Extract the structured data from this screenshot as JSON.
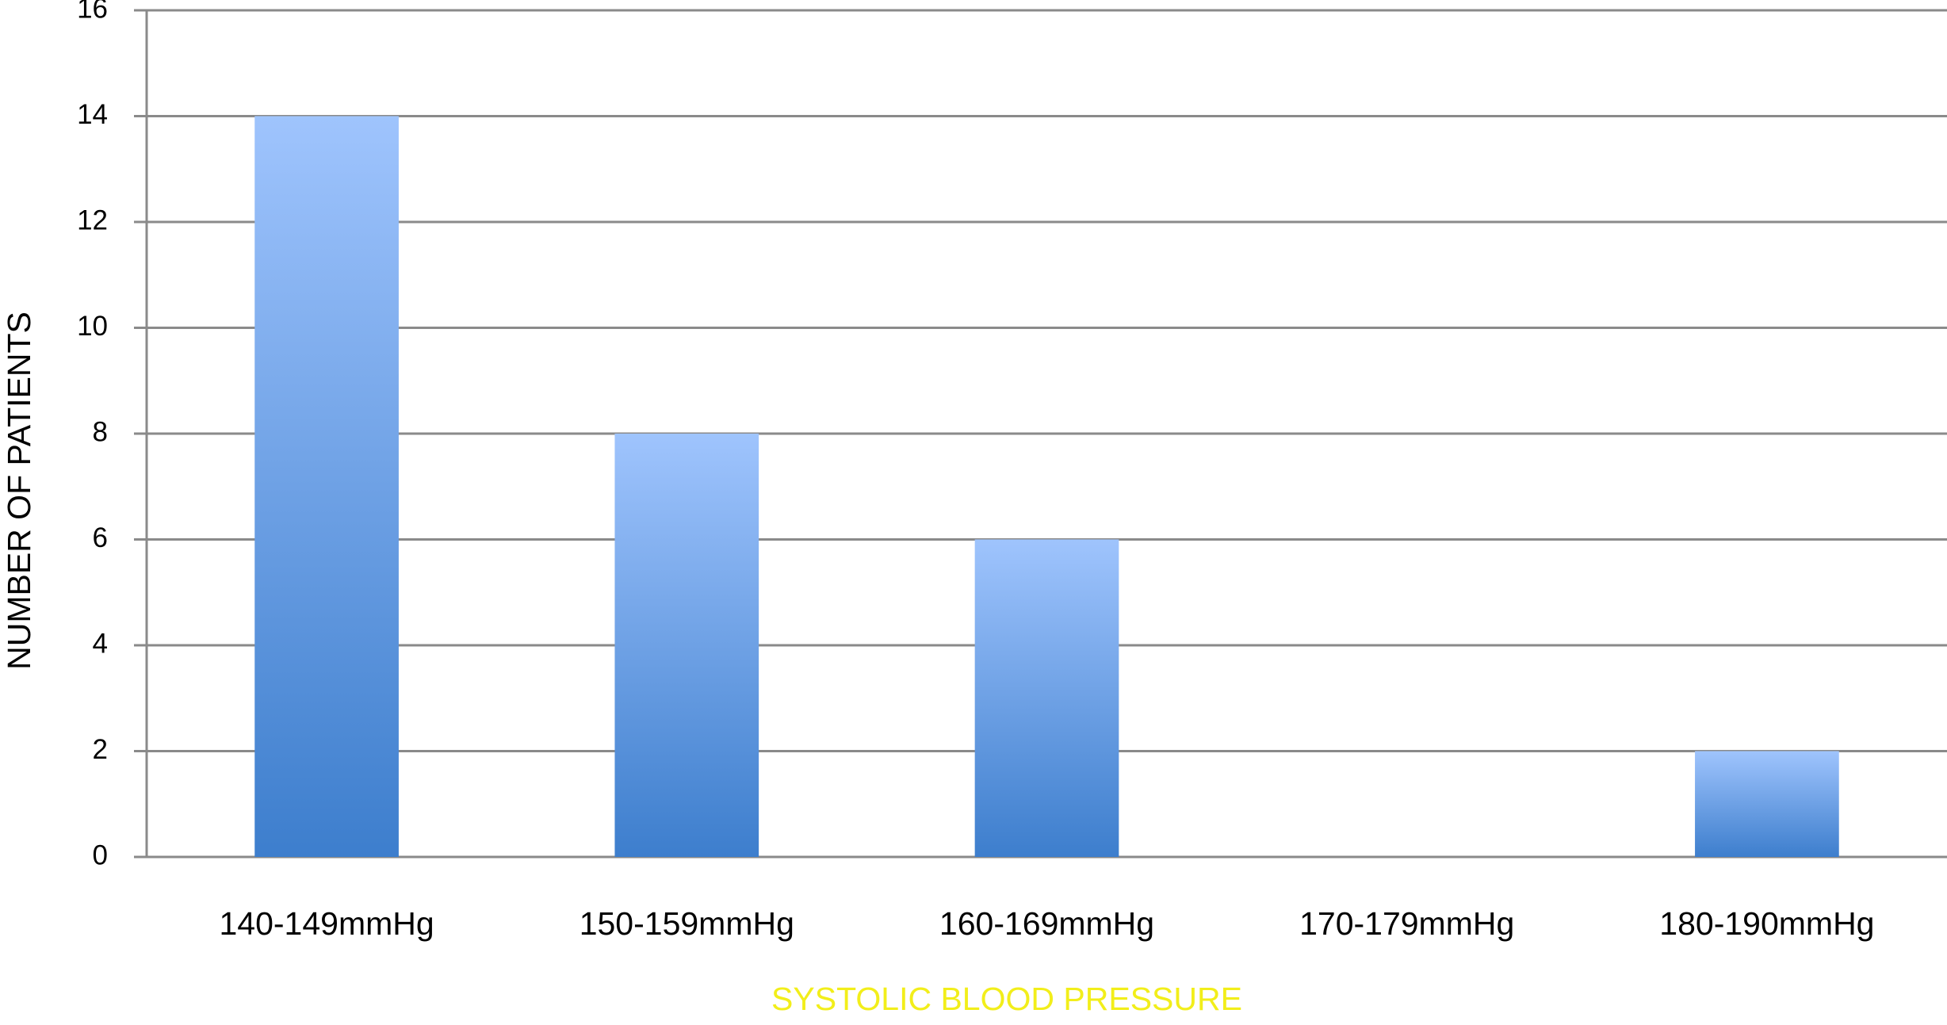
{
  "chart_data": {
    "type": "bar",
    "categories": [
      "140-149mmHg",
      "150-159mmHg",
      "160-169mmHg",
      "170-179mmHg",
      "180-190mmHg"
    ],
    "values": [
      14,
      8,
      6,
      0,
      2
    ],
    "gradient": [
      "#9fc4fd",
      "#3d7ecd"
    ],
    "ylim": [
      0,
      16
    ],
    "yticks": [
      0,
      2,
      4,
      6,
      8,
      10,
      12,
      14,
      16
    ],
    "grid": true,
    "xlabel": "SYSTOLIC BLOOD PRESSURE",
    "xlabel_color": "#f2ee1a",
    "ylabel": "NUMBER OF PATIENTS"
  }
}
